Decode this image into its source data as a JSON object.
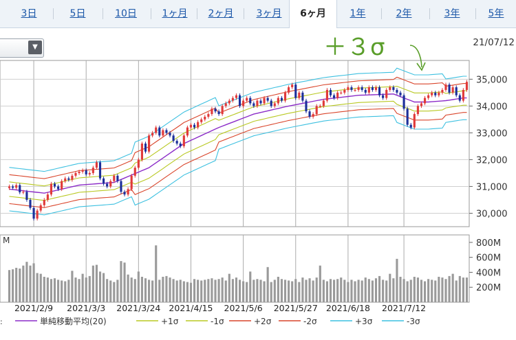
{
  "tabs": [
    {
      "label": "3日",
      "active": false
    },
    {
      "label": "5日",
      "active": false
    },
    {
      "label": "10日",
      "active": false
    },
    {
      "label": "1ヶ月",
      "active": false
    },
    {
      "label": "2ヶ月",
      "active": false
    },
    {
      "label": "3ヶ月",
      "active": false
    },
    {
      "label": "6ヶ月",
      "active": true
    },
    {
      "label": "1年",
      "active": false
    },
    {
      "label": "2年",
      "active": false
    },
    {
      "label": "3年",
      "active": false
    },
    {
      "label": "5年",
      "active": false
    }
  ],
  "date_label": "21/07/12",
  "annotation": "＋３σ",
  "volume_unit_label": "M",
  "colors": {
    "up_candle": "#e03a3a",
    "down_candle": "#1c2f9a",
    "sma": "#8b2bc8",
    "plus1": "#b8c820",
    "minus1": "#b8c820",
    "plus2": "#d9442a",
    "minus2": "#d9442a",
    "plus3": "#3cc0e0",
    "minus3": "#3cc0e0",
    "volume": "#9a9a9a",
    "annotation": "#5a9e2a",
    "grid": "#aaaaaa",
    "tab_text": "#1a56a8"
  },
  "chart_data": {
    "type": "candlestick",
    "price_axis": {
      "ticks": [
        30000,
        31000,
        32000,
        33000,
        34000,
        35000
      ],
      "tick_labels": [
        "30,000",
        "31,000",
        "32,000",
        "33,000",
        "34,000",
        "35,000"
      ],
      "range": [
        29500,
        35700
      ]
    },
    "volume_axis": {
      "ticks": [
        200,
        400,
        600,
        800
      ],
      "tick_labels": [
        "200M",
        "400M",
        "600M",
        "800M"
      ],
      "range": [
        0,
        900
      ]
    },
    "x_labels": [
      "2021/2/9",
      "2021/3/3",
      "2021/3/24",
      "2021/4/15",
      "2021/5/6",
      "2021/5/27",
      "2021/6/18",
      "2021/7/12"
    ],
    "x_label_positions": [
      7,
      22,
      37,
      52,
      67,
      82,
      97,
      113
    ],
    "closes": [
      31000,
      30950,
      31050,
      30780,
      30800,
      30500,
      30200,
      29800,
      30100,
      30300,
      30500,
      30700,
      31100,
      31000,
      30900,
      31200,
      31300,
      31250,
      31400,
      31500,
      31550,
      31600,
      31450,
      31500,
      31700,
      31900,
      31300,
      31100,
      31000,
      31200,
      31400,
      31200,
      30800,
      30700,
      30900,
      31400,
      31700,
      32000,
      32600,
      32300,
      32900,
      33000,
      33200,
      32900,
      33100,
      33000,
      32900,
      32700,
      32600,
      32500,
      32900,
      33200,
      33300,
      33200,
      33400,
      33500,
      33600,
      33700,
      33900,
      33800,
      33700,
      34000,
      34100,
      34200,
      34300,
      34400,
      34000,
      34200,
      34300,
      34100,
      34000,
      34200,
      34100,
      34300,
      34200,
      34000,
      34100,
      34300,
      34200,
      34500,
      34700,
      34800,
      34300,
      34500,
      34200,
      33800,
      33600,
      33700,
      34000,
      34000,
      34200,
      34600,
      34400,
      34300,
      34500,
      34500,
      34600,
      34700,
      34600,
      34600,
      34700,
      34600,
      34500,
      34700,
      34600,
      34700,
      34400,
      34300,
      34600,
      34700,
      34600,
      34500,
      34400,
      33900,
      33300,
      33200,
      33700,
      34000,
      34100,
      34300,
      34400,
      34500,
      34400,
      34500,
      34600,
      34800,
      34500,
      34700,
      34400,
      34200,
      34600,
      34900
    ],
    "volumes_millions": [
      430,
      440,
      460,
      450,
      490,
      540,
      490,
      520,
      390,
      380,
      340,
      330,
      310,
      320,
      300,
      290,
      280,
      300,
      420,
      330,
      310,
      380,
      330,
      350,
      490,
      500,
      410,
      390,
      310,
      290,
      270,
      300,
      550,
      530,
      370,
      330,
      310,
      410,
      340,
      320,
      300,
      290,
      760,
      300,
      340,
      350,
      330,
      310,
      290,
      300,
      280,
      270,
      260,
      310,
      300,
      290,
      300,
      310,
      320,
      300,
      310,
      330,
      290,
      380,
      310,
      330,
      300,
      280,
      270,
      410,
      300,
      310,
      300,
      280,
      470,
      270,
      300,
      340,
      310,
      300,
      290,
      280,
      310,
      270,
      330,
      300,
      320,
      290,
      330,
      490,
      300,
      280,
      310,
      300,
      310,
      330,
      300,
      270,
      300,
      280,
      300,
      290,
      330,
      310,
      290,
      320,
      350,
      300,
      290,
      380,
      320,
      580,
      340,
      310,
      280,
      300,
      340,
      330,
      300,
      280,
      310,
      300,
      290,
      340,
      330,
      310,
      350,
      380,
      290,
      350,
      330,
      330
    ],
    "sma_points": [
      [
        0,
        30900
      ],
      [
        10,
        30750
      ],
      [
        20,
        31050
      ],
      [
        30,
        31150
      ],
      [
        40,
        31700
      ],
      [
        50,
        32600
      ],
      [
        60,
        33200
      ],
      [
        70,
        33700
      ],
      [
        80,
        34000
      ],
      [
        90,
        34250
      ],
      [
        100,
        34400
      ],
      [
        110,
        34450
      ],
      [
        116,
        34150
      ],
      [
        120,
        34150
      ],
      [
        125,
        34200
      ],
      [
        130,
        34300
      ]
    ],
    "band_offsets": {
      "plus1": 270,
      "minus1": -270,
      "plus2": 540,
      "minus2": -540,
      "plus3": 810,
      "minus3": -810
    },
    "legend": [
      {
        "label": "単純移動平均(20)",
        "key": "sma"
      },
      {
        "label": "+1σ",
        "key": "plus1"
      },
      {
        "label": "-1σ",
        "key": "minus1"
      },
      {
        "label": "+2σ",
        "key": "plus2"
      },
      {
        "label": "-2σ",
        "key": "minus2"
      },
      {
        "label": "+3σ",
        "key": "plus3"
      },
      {
        "label": "-3σ",
        "key": "minus3"
      }
    ]
  }
}
